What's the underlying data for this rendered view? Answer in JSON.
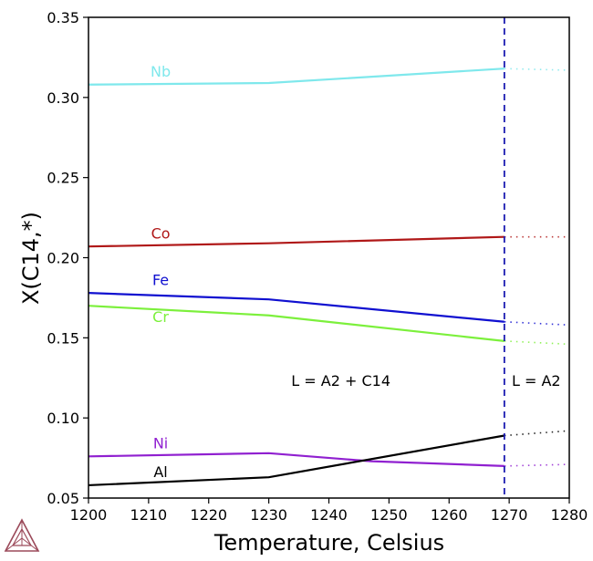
{
  "chart_data": {
    "type": "line",
    "xlabel": "Temperature, Celsius",
    "ylabel": "X(C14,*)",
    "xlim": [
      1200,
      1280
    ],
    "ylim": [
      0.05,
      0.35
    ],
    "x_ticks": [
      1200,
      1210,
      1220,
      1230,
      1240,
      1250,
      1260,
      1270,
      1280
    ],
    "y_ticks": [
      "0.05",
      "0.10",
      "0.15",
      "0.20",
      "0.25",
      "0.30",
      "0.35"
    ],
    "grid": false,
    "boundary_x": 1269.2,
    "boundary_color": "#1a1ab0",
    "region_labels": [
      {
        "text": "L = A2 + C14",
        "x": 1242,
        "y": 0.12
      },
      {
        "text": "L = A2",
        "x": 1274.5,
        "y": 0.12
      }
    ],
    "series": [
      {
        "name": "Nb",
        "color": "#7fe8ec",
        "label_at": [
          1212,
          0.313
        ],
        "points": [
          [
            1200,
            0.308
          ],
          [
            1230,
            0.309
          ],
          [
            1269.2,
            0.318
          ]
        ],
        "dotted": [
          [
            1269.2,
            0.318
          ],
          [
            1280,
            0.317
          ]
        ]
      },
      {
        "name": "Co",
        "color": "#b01818",
        "label_at": [
          1212,
          0.212
        ],
        "points": [
          [
            1200,
            0.207
          ],
          [
            1230,
            0.209
          ],
          [
            1269.2,
            0.213
          ]
        ],
        "dotted": [
          [
            1269.2,
            0.213
          ],
          [
            1280,
            0.213
          ]
        ]
      },
      {
        "name": "Fe",
        "color": "#1010d0",
        "label_at": [
          1212,
          0.183
        ],
        "points": [
          [
            1200,
            0.178
          ],
          [
            1230,
            0.174
          ],
          [
            1269.2,
            0.16
          ]
        ],
        "dotted": [
          [
            1269.2,
            0.16
          ],
          [
            1280,
            0.158
          ]
        ]
      },
      {
        "name": "Cr",
        "color": "#7cf03c",
        "label_at": [
          1212,
          0.16
        ],
        "points": [
          [
            1200,
            0.17
          ],
          [
            1230,
            0.164
          ],
          [
            1269.2,
            0.148
          ]
        ],
        "dotted": [
          [
            1269.2,
            0.148
          ],
          [
            1280,
            0.146
          ]
        ]
      },
      {
        "name": "Ni",
        "color": "#9020d0",
        "label_at": [
          1212,
          0.081
        ],
        "points": [
          [
            1200,
            0.076
          ],
          [
            1230,
            0.078
          ],
          [
            1247,
            0.073
          ],
          [
            1269.2,
            0.07
          ]
        ],
        "dotted": [
          [
            1269.2,
            0.07
          ],
          [
            1280,
            0.071
          ]
        ]
      },
      {
        "name": "Al",
        "color": "#000000",
        "label_at": [
          1212,
          0.063
        ],
        "points": [
          [
            1200,
            0.058
          ],
          [
            1230,
            0.063
          ],
          [
            1269.2,
            0.089
          ]
        ],
        "dotted": [
          [
            1269.2,
            0.089
          ],
          [
            1280,
            0.092
          ]
        ]
      }
    ]
  }
}
